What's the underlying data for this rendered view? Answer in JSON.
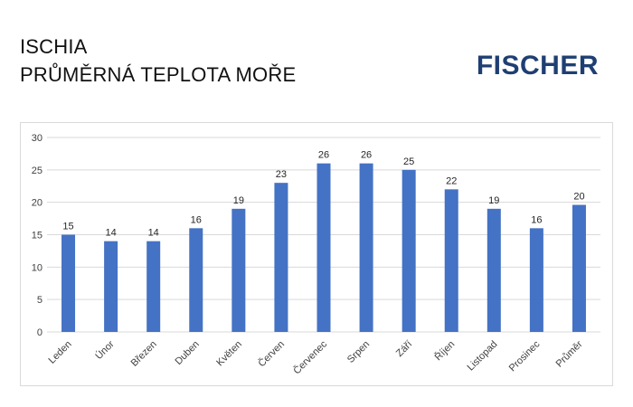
{
  "header": {
    "title_line1": "ISCHIA",
    "title_line2": "PRŮMĚRNÁ TEPLOTA MOŘE",
    "logo_text": "FISCHER"
  },
  "colors": {
    "bar": "#4472C4",
    "grid": "#d9d9d9",
    "logo": "#1f3f73"
  },
  "chart_data": {
    "type": "bar",
    "categories": [
      "Leden",
      "Únor",
      "Březen",
      "Duben",
      "Květen",
      "Červen",
      "Červenec",
      "Srpen",
      "Září",
      "Říjen",
      "Listopad",
      "Prosinec",
      "Průměr"
    ],
    "values": [
      15,
      14,
      14,
      16,
      19,
      23,
      26,
      26,
      25,
      22,
      19,
      16,
      19.6
    ],
    "data_labels": [
      "15",
      "14",
      "14",
      "16",
      "19",
      "23",
      "26",
      "26",
      "25",
      "22",
      "19",
      "16",
      "20"
    ],
    "ylim": [
      0,
      30
    ],
    "yticks": [
      0,
      5,
      10,
      15,
      20,
      25,
      30
    ],
    "grid": true,
    "legend": "none"
  }
}
